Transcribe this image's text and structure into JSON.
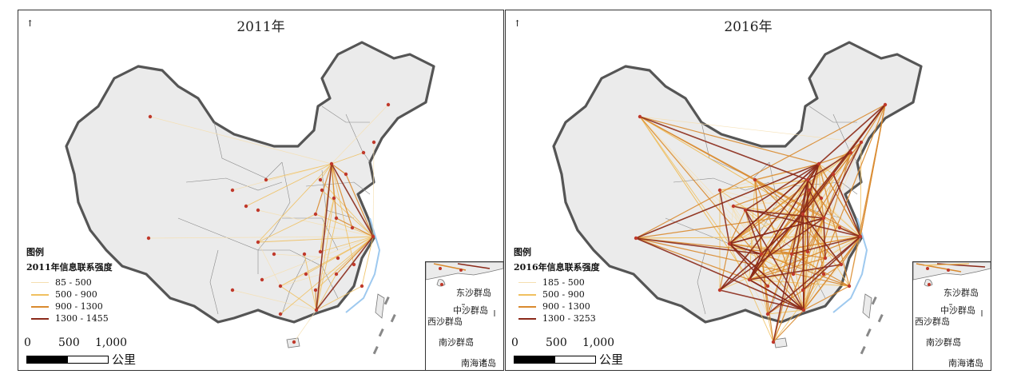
{
  "panels": [
    {
      "title": "2011年",
      "legend_heading": "图例",
      "legend_title": "2011年信息联系强度",
      "classes": [
        {
          "label": "85 - 500",
          "color": "#f5dfb0"
        },
        {
          "label": "500 - 900",
          "color": "#f0c060"
        },
        {
          "label": "900 - 1300",
          "color": "#d98a2e"
        },
        {
          "label": "1300 - 1455",
          "color": "#8b2a1a"
        }
      ]
    },
    {
      "title": "2016年",
      "legend_heading": "图例",
      "legend_title": "2016年信息联系强度",
      "classes": [
        {
          "label": "185 - 500",
          "color": "#f5dfb0"
        },
        {
          "label": "500 - 900",
          "color": "#f0c060"
        },
        {
          "label": "900 - 1300",
          "color": "#d98a2e"
        },
        {
          "label": "1300 - 3253",
          "color": "#8b2a1a"
        }
      ]
    }
  ],
  "scale": {
    "ticks": [
      "0",
      "500",
      "1,000"
    ],
    "unit": "公里"
  },
  "inset": {
    "labels": [
      "东沙群岛",
      "中沙群岛",
      "西沙群岛",
      "南沙群岛",
      "南海诸岛"
    ]
  },
  "colors": {
    "land": "#ebebeb",
    "border": "#6f6f6f",
    "city": "#c0392b",
    "coast": "#9ec9ef"
  }
}
